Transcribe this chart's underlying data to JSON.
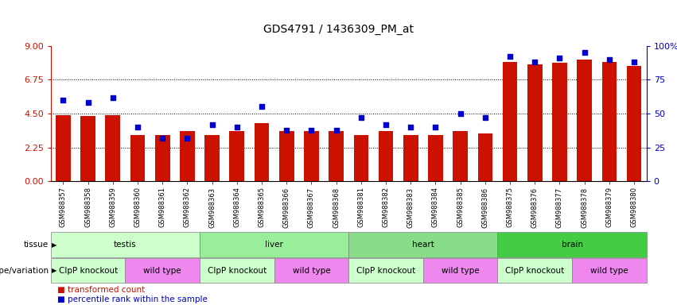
{
  "title": "GDS4791 / 1436309_PM_at",
  "samples": [
    "GSM988357",
    "GSM988358",
    "GSM988359",
    "GSM988360",
    "GSM988361",
    "GSM988362",
    "GSM988363",
    "GSM988364",
    "GSM988365",
    "GSM988366",
    "GSM988367",
    "GSM988368",
    "GSM988381",
    "GSM988382",
    "GSM988383",
    "GSM988384",
    "GSM988385",
    "GSM988386",
    "GSM988375",
    "GSM988376",
    "GSM988377",
    "GSM988378",
    "GSM988379",
    "GSM988380"
  ],
  "bar_values": [
    4.4,
    4.35,
    4.4,
    3.1,
    3.1,
    3.35,
    3.1,
    3.35,
    3.85,
    3.35,
    3.35,
    3.35,
    3.1,
    3.35,
    3.1,
    3.1,
    3.35,
    3.2,
    7.9,
    7.75,
    7.85,
    8.1,
    7.9,
    7.65
  ],
  "percentile_values": [
    60,
    58,
    62,
    40,
    32,
    32,
    42,
    40,
    55,
    38,
    38,
    38,
    47,
    42,
    40,
    40,
    50,
    47,
    92,
    88,
    91,
    95,
    90,
    88
  ],
  "ylim_left": [
    0,
    9
  ],
  "ylim_right": [
    0,
    100
  ],
  "yticks_left": [
    0,
    2.25,
    4.5,
    6.75,
    9
  ],
  "yticks_right": [
    0,
    25,
    50,
    75,
    100
  ],
  "hlines": [
    2.25,
    4.5,
    6.75
  ],
  "bar_color": "#CC1100",
  "dot_color": "#0000CC",
  "background_color": "#FFFFFF",
  "xlabel_color": "#CC1100",
  "ylabel_right_color": "#0000CC",
  "tissue_groups": [
    {
      "label": "testis",
      "start": 0,
      "end": 6,
      "color": "#CCFFCC"
    },
    {
      "label": "liver",
      "start": 6,
      "end": 12,
      "color": "#99EE99"
    },
    {
      "label": "heart",
      "start": 12,
      "end": 18,
      "color": "#88DD88"
    },
    {
      "label": "brain",
      "start": 18,
      "end": 24,
      "color": "#44CC44"
    }
  ],
  "geno_groups": [
    {
      "label": "ClpP knockout",
      "start": 0,
      "end": 3,
      "color": "#CCFFCC"
    },
    {
      "label": "wild type",
      "start": 3,
      "end": 6,
      "color": "#EE88EE"
    },
    {
      "label": "ClpP knockout",
      "start": 6,
      "end": 9,
      "color": "#CCFFCC"
    },
    {
      "label": "wild type",
      "start": 9,
      "end": 12,
      "color": "#EE88EE"
    },
    {
      "label": "ClpP knockout",
      "start": 12,
      "end": 15,
      "color": "#CCFFCC"
    },
    {
      "label": "wild type",
      "start": 15,
      "end": 18,
      "color": "#EE88EE"
    },
    {
      "label": "ClpP knockout",
      "start": 18,
      "end": 21,
      "color": "#CCFFCC"
    },
    {
      "label": "wild type",
      "start": 21,
      "end": 24,
      "color": "#EE88EE"
    }
  ]
}
